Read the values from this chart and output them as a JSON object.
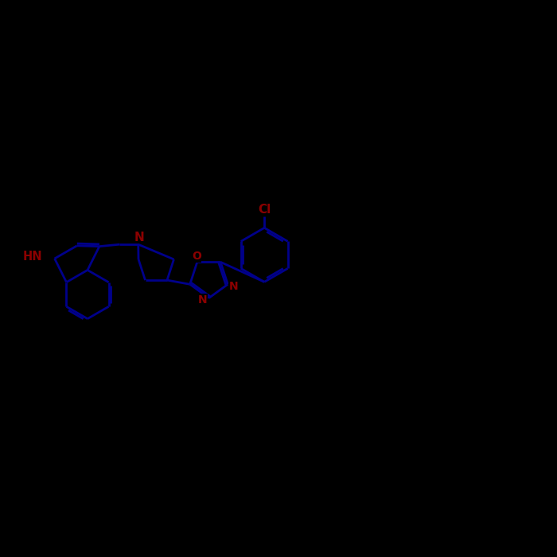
{
  "background_color": "#000000",
  "bond_color": "#00008B",
  "hetero_color": "#8B0000",
  "lw": 2.0,
  "fs": 11,
  "xlim": [
    0,
    14
  ],
  "ylim": [
    0,
    10
  ],
  "figsize": [
    7.0,
    7.0
  ],
  "dpi": 100
}
